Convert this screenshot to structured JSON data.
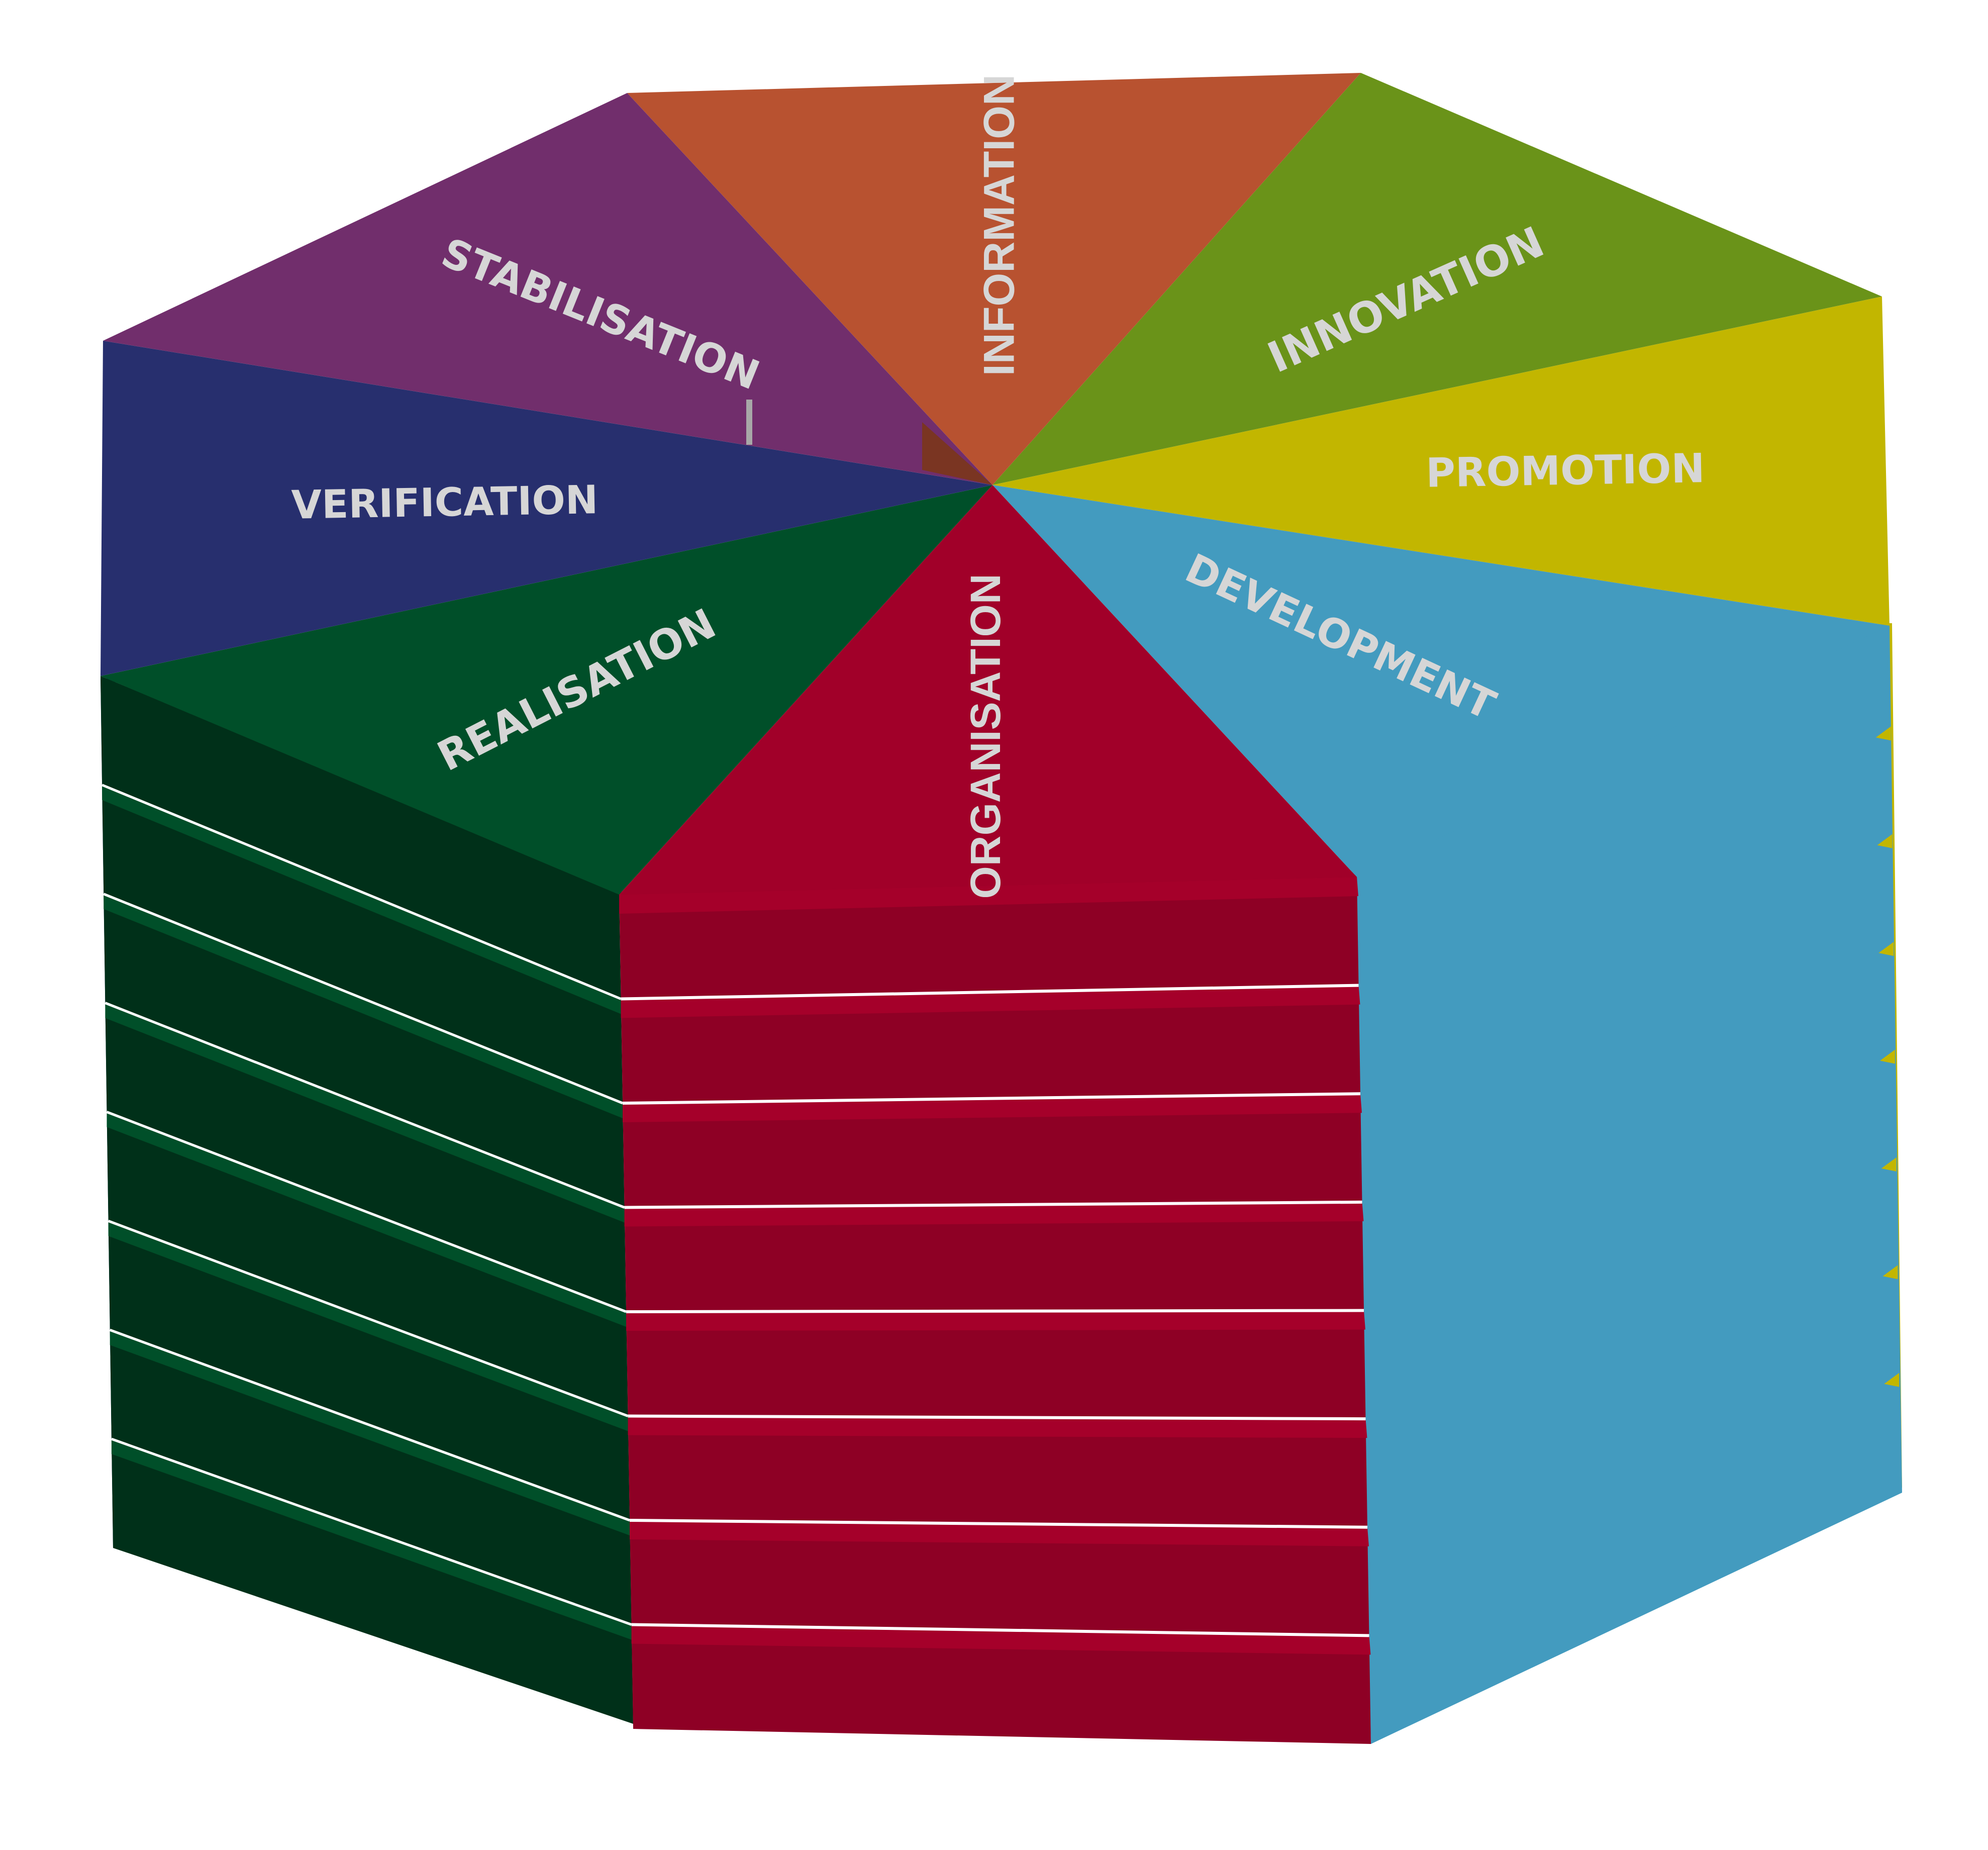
{
  "segments": [
    {
      "key": "information",
      "label": "INFORMATION",
      "color": "#b85230"
    },
    {
      "key": "innovation",
      "label": "INNOVATION",
      "color": "#6a9319"
    },
    {
      "key": "promotion",
      "label": "PROMOTION",
      "color": "#c2b600"
    },
    {
      "key": "development",
      "label": "DEVELOPMENT",
      "color": "#439bbf"
    },
    {
      "key": "organisation",
      "label": "ORGANISATION",
      "color": "#a10029"
    },
    {
      "key": "realisation",
      "label": "REALISATION",
      "color": "#004f29"
    },
    {
      "key": "verification",
      "label": "VERIFICATION",
      "color": "#272f6e"
    },
    {
      "key": "stabilisation",
      "label": "STABILISATION",
      "color": "#712e6c"
    }
  ],
  "side_colors": {
    "organisation_front": "#8e0025",
    "organisation_top_edge": "#a5002a",
    "realisation_front": "#003019",
    "realisation_top_edge": "#004f29",
    "development_front": "#439bbf",
    "promotion_edge": "#c2b600",
    "verification_edge": "#272f6e"
  },
  "layer_count": 8
}
